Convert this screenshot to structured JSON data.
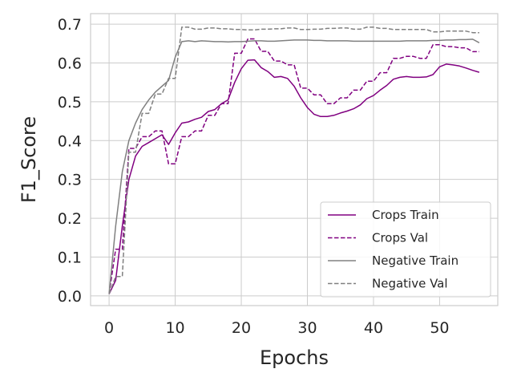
{
  "chart_data": {
    "type": "line",
    "title": "",
    "xlabel": "Epochs",
    "ylabel": "F1_Score",
    "xlim": [
      -2.8,
      58.8
    ],
    "ylim": [
      -0.025,
      0.727
    ],
    "xticks": [
      0,
      10,
      20,
      30,
      40,
      50
    ],
    "yticks": [
      0.0,
      0.1,
      0.2,
      0.3,
      0.4,
      0.5,
      0.6,
      0.7
    ],
    "ytick_labels": [
      "0.0",
      "0.1",
      "0.2",
      "0.3",
      "0.4",
      "0.5",
      "0.6",
      "0.7"
    ],
    "grid": true,
    "legend_position": "bottom-right",
    "colors": {
      "crops": "#800080",
      "negative": "#808080",
      "grid": "#cccccc",
      "spine": "#cccccc",
      "text": "#262626"
    },
    "series": [
      {
        "name": "Crops Train",
        "color": "#800080",
        "dash": "solid",
        "x": [
          0,
          1,
          2,
          3,
          4,
          5,
          6,
          7,
          8,
          9,
          10,
          11,
          12,
          13,
          14,
          15,
          16,
          17,
          18,
          19,
          20,
          21,
          22,
          23,
          24,
          25,
          26,
          27,
          28,
          29,
          30,
          31,
          32,
          33,
          34,
          35,
          36,
          37,
          38,
          39,
          40,
          41,
          42,
          43,
          44,
          45,
          46,
          47,
          48,
          49,
          50,
          51,
          52,
          53,
          54,
          55,
          56
        ],
        "y": [
          0.005,
          0.04,
          0.18,
          0.3,
          0.36,
          0.385,
          0.395,
          0.405,
          0.415,
          0.39,
          0.42,
          0.445,
          0.448,
          0.455,
          0.46,
          0.475,
          0.48,
          0.495,
          0.505,
          0.55,
          0.585,
          0.607,
          0.608,
          0.588,
          0.578,
          0.563,
          0.565,
          0.56,
          0.54,
          0.51,
          0.485,
          0.468,
          0.462,
          0.462,
          0.465,
          0.471,
          0.476,
          0.482,
          0.492,
          0.508,
          0.516,
          0.53,
          0.542,
          0.558,
          0.563,
          0.565,
          0.563,
          0.563,
          0.564,
          0.57,
          0.59,
          0.597,
          0.595,
          0.592,
          0.587,
          0.581,
          0.576
        ]
      },
      {
        "name": "Crops Val",
        "color": "#800080",
        "dash": "dashed",
        "x": [
          0,
          1,
          2,
          3,
          4,
          5,
          6,
          7,
          8,
          9,
          10,
          11,
          12,
          13,
          14,
          15,
          16,
          17,
          18,
          19,
          20,
          21,
          22,
          23,
          24,
          25,
          26,
          27,
          28,
          29,
          30,
          31,
          32,
          33,
          34,
          35,
          36,
          37,
          38,
          39,
          40,
          41,
          42,
          43,
          44,
          45,
          46,
          47,
          48,
          49,
          50,
          51,
          52,
          53,
          54,
          55,
          56
        ],
        "y": [
          0.005,
          0.12,
          0.12,
          0.38,
          0.38,
          0.41,
          0.41,
          0.425,
          0.425,
          0.34,
          0.34,
          0.41,
          0.41,
          0.425,
          0.425,
          0.465,
          0.465,
          0.495,
          0.495,
          0.625,
          0.625,
          0.662,
          0.662,
          0.63,
          0.63,
          0.605,
          0.605,
          0.595,
          0.595,
          0.535,
          0.535,
          0.518,
          0.518,
          0.495,
          0.495,
          0.51,
          0.51,
          0.53,
          0.53,
          0.553,
          0.553,
          0.575,
          0.575,
          0.612,
          0.612,
          0.617,
          0.617,
          0.612,
          0.612,
          0.647,
          0.647,
          0.642,
          0.642,
          0.639,
          0.639,
          0.629,
          0.629
        ]
      },
      {
        "name": "Negative Train",
        "color": "#808080",
        "dash": "solid",
        "x": [
          0,
          1,
          2,
          3,
          4,
          5,
          6,
          7,
          8,
          9,
          10,
          11,
          12,
          13,
          14,
          15,
          16,
          17,
          18,
          19,
          20,
          21,
          22,
          23,
          24,
          25,
          26,
          27,
          28,
          29,
          30,
          31,
          32,
          33,
          34,
          35,
          36,
          37,
          38,
          39,
          40,
          41,
          42,
          43,
          44,
          45,
          46,
          47,
          48,
          49,
          50,
          51,
          52,
          53,
          54,
          55,
          56
        ],
        "y": [
          0.005,
          0.18,
          0.32,
          0.4,
          0.445,
          0.48,
          0.505,
          0.525,
          0.54,
          0.555,
          0.615,
          0.655,
          0.657,
          0.655,
          0.657,
          0.656,
          0.655,
          0.655,
          0.654,
          0.655,
          0.655,
          0.656,
          0.657,
          0.657,
          0.656,
          0.656,
          0.657,
          0.658,
          0.659,
          0.659,
          0.659,
          0.658,
          0.658,
          0.657,
          0.657,
          0.657,
          0.657,
          0.656,
          0.656,
          0.656,
          0.656,
          0.656,
          0.656,
          0.656,
          0.656,
          0.657,
          0.657,
          0.657,
          0.657,
          0.658,
          0.658,
          0.659,
          0.659,
          0.66,
          0.66,
          0.661,
          0.652
        ]
      },
      {
        "name": "Negative Val",
        "color": "#808080",
        "dash": "dashed",
        "x": [
          0,
          1,
          2,
          3,
          4,
          5,
          6,
          7,
          8,
          9,
          10,
          11,
          12,
          13,
          14,
          15,
          16,
          17,
          18,
          19,
          20,
          21,
          22,
          23,
          24,
          25,
          26,
          27,
          28,
          29,
          30,
          31,
          32,
          33,
          34,
          35,
          36,
          37,
          38,
          39,
          40,
          41,
          42,
          43,
          44,
          45,
          46,
          47,
          48,
          49,
          50,
          51,
          52,
          53,
          54,
          55,
          56
        ],
        "y": [
          0.005,
          0.05,
          0.05,
          0.37,
          0.37,
          0.47,
          0.47,
          0.52,
          0.52,
          0.56,
          0.56,
          0.692,
          0.692,
          0.687,
          0.687,
          0.69,
          0.69,
          0.688,
          0.688,
          0.686,
          0.686,
          0.685,
          0.685,
          0.687,
          0.687,
          0.688,
          0.688,
          0.69,
          0.69,
          0.686,
          0.686,
          0.687,
          0.687,
          0.689,
          0.689,
          0.69,
          0.69,
          0.687,
          0.687,
          0.692,
          0.692,
          0.689,
          0.689,
          0.686,
          0.686,
          0.686,
          0.686,
          0.686,
          0.686,
          0.68,
          0.68,
          0.682,
          0.682,
          0.682,
          0.682,
          0.678,
          0.678
        ]
      }
    ]
  }
}
